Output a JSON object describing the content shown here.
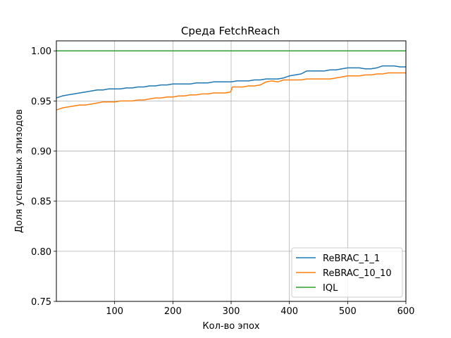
{
  "chart_data": {
    "type": "line",
    "title": "Среда FetchReach",
    "xlabel": "Кол-во эпох",
    "ylabel": "Доля успешных эпизодов",
    "xlim": [
      0,
      600
    ],
    "ylim": [
      0.75,
      1.01
    ],
    "xticks": [
      100,
      200,
      300,
      400,
      500,
      600
    ],
    "yticks": [
      0.75,
      0.8,
      0.85,
      0.9,
      0.95,
      1.0
    ],
    "xtick_labels": [
      "100",
      "200",
      "300",
      "400",
      "500",
      "600"
    ],
    "ytick_labels": [
      "0.75",
      "0.80",
      "0.85",
      "0.90",
      "0.95",
      "1.00"
    ],
    "grid": true,
    "legend_position": "bottom-right",
    "series": [
      {
        "name": "ReBRAC_1_1",
        "color": "#1f77b4",
        "points": [
          [
            0,
            0.953
          ],
          [
            10,
            0.955
          ],
          [
            20,
            0.956
          ],
          [
            30,
            0.957
          ],
          [
            40,
            0.958
          ],
          [
            50,
            0.959
          ],
          [
            60,
            0.96
          ],
          [
            70,
            0.961
          ],
          [
            80,
            0.961
          ],
          [
            90,
            0.962
          ],
          [
            100,
            0.962
          ],
          [
            110,
            0.962
          ],
          [
            120,
            0.963
          ],
          [
            130,
            0.963
          ],
          [
            140,
            0.964
          ],
          [
            150,
            0.964
          ],
          [
            160,
            0.965
          ],
          [
            170,
            0.965
          ],
          [
            180,
            0.966
          ],
          [
            190,
            0.966
          ],
          [
            200,
            0.967
          ],
          [
            210,
            0.967
          ],
          [
            220,
            0.967
          ],
          [
            230,
            0.967
          ],
          [
            240,
            0.968
          ],
          [
            250,
            0.968
          ],
          [
            260,
            0.968
          ],
          [
            270,
            0.969
          ],
          [
            280,
            0.969
          ],
          [
            290,
            0.969
          ],
          [
            300,
            0.969
          ],
          [
            310,
            0.97
          ],
          [
            320,
            0.97
          ],
          [
            330,
            0.97
          ],
          [
            340,
            0.971
          ],
          [
            350,
            0.971
          ],
          [
            360,
            0.972
          ],
          [
            370,
            0.972
          ],
          [
            380,
            0.972
          ],
          [
            390,
            0.973
          ],
          [
            400,
            0.975
          ],
          [
            410,
            0.976
          ],
          [
            420,
            0.977
          ],
          [
            430,
            0.98
          ],
          [
            440,
            0.98
          ],
          [
            450,
            0.98
          ],
          [
            460,
            0.98
          ],
          [
            470,
            0.981
          ],
          [
            480,
            0.981
          ],
          [
            490,
            0.982
          ],
          [
            500,
            0.983
          ],
          [
            510,
            0.983
          ],
          [
            520,
            0.983
          ],
          [
            530,
            0.982
          ],
          [
            540,
            0.982
          ],
          [
            550,
            0.983
          ],
          [
            560,
            0.985
          ],
          [
            570,
            0.985
          ],
          [
            580,
            0.985
          ],
          [
            590,
            0.984
          ],
          [
            600,
            0.984
          ]
        ]
      },
      {
        "name": "ReBRAC_10_10",
        "color": "#ff7f0e",
        "points": [
          [
            0,
            0.941
          ],
          [
            10,
            0.943
          ],
          [
            20,
            0.944
          ],
          [
            30,
            0.945
          ],
          [
            40,
            0.946
          ],
          [
            50,
            0.946
          ],
          [
            60,
            0.947
          ],
          [
            70,
            0.948
          ],
          [
            80,
            0.949
          ],
          [
            90,
            0.949
          ],
          [
            100,
            0.949
          ],
          [
            110,
            0.95
          ],
          [
            120,
            0.95
          ],
          [
            130,
            0.95
          ],
          [
            140,
            0.951
          ],
          [
            150,
            0.951
          ],
          [
            160,
            0.952
          ],
          [
            170,
            0.953
          ],
          [
            180,
            0.953
          ],
          [
            190,
            0.954
          ],
          [
            200,
            0.954
          ],
          [
            210,
            0.955
          ],
          [
            220,
            0.955
          ],
          [
            230,
            0.956
          ],
          [
            240,
            0.956
          ],
          [
            250,
            0.957
          ],
          [
            260,
            0.957
          ],
          [
            270,
            0.958
          ],
          [
            280,
            0.958
          ],
          [
            290,
            0.958
          ],
          [
            299,
            0.959
          ],
          [
            302,
            0.964
          ],
          [
            310,
            0.964
          ],
          [
            320,
            0.964
          ],
          [
            330,
            0.965
          ],
          [
            340,
            0.965
          ],
          [
            350,
            0.966
          ],
          [
            360,
            0.969
          ],
          [
            370,
            0.97
          ],
          [
            380,
            0.969
          ],
          [
            390,
            0.971
          ],
          [
            400,
            0.971
          ],
          [
            410,
            0.971
          ],
          [
            420,
            0.971
          ],
          [
            430,
            0.972
          ],
          [
            440,
            0.972
          ],
          [
            450,
            0.972
          ],
          [
            460,
            0.972
          ],
          [
            470,
            0.972
          ],
          [
            480,
            0.973
          ],
          [
            490,
            0.974
          ],
          [
            500,
            0.975
          ],
          [
            510,
            0.975
          ],
          [
            520,
            0.975
          ],
          [
            530,
            0.976
          ],
          [
            540,
            0.976
          ],
          [
            550,
            0.977
          ],
          [
            560,
            0.977
          ],
          [
            570,
            0.978
          ],
          [
            580,
            0.978
          ],
          [
            590,
            0.978
          ],
          [
            600,
            0.978
          ]
        ]
      },
      {
        "name": "IQL",
        "color": "#2ca02c",
        "points": [
          [
            0,
            1.0
          ],
          [
            600,
            1.0
          ]
        ]
      }
    ]
  }
}
